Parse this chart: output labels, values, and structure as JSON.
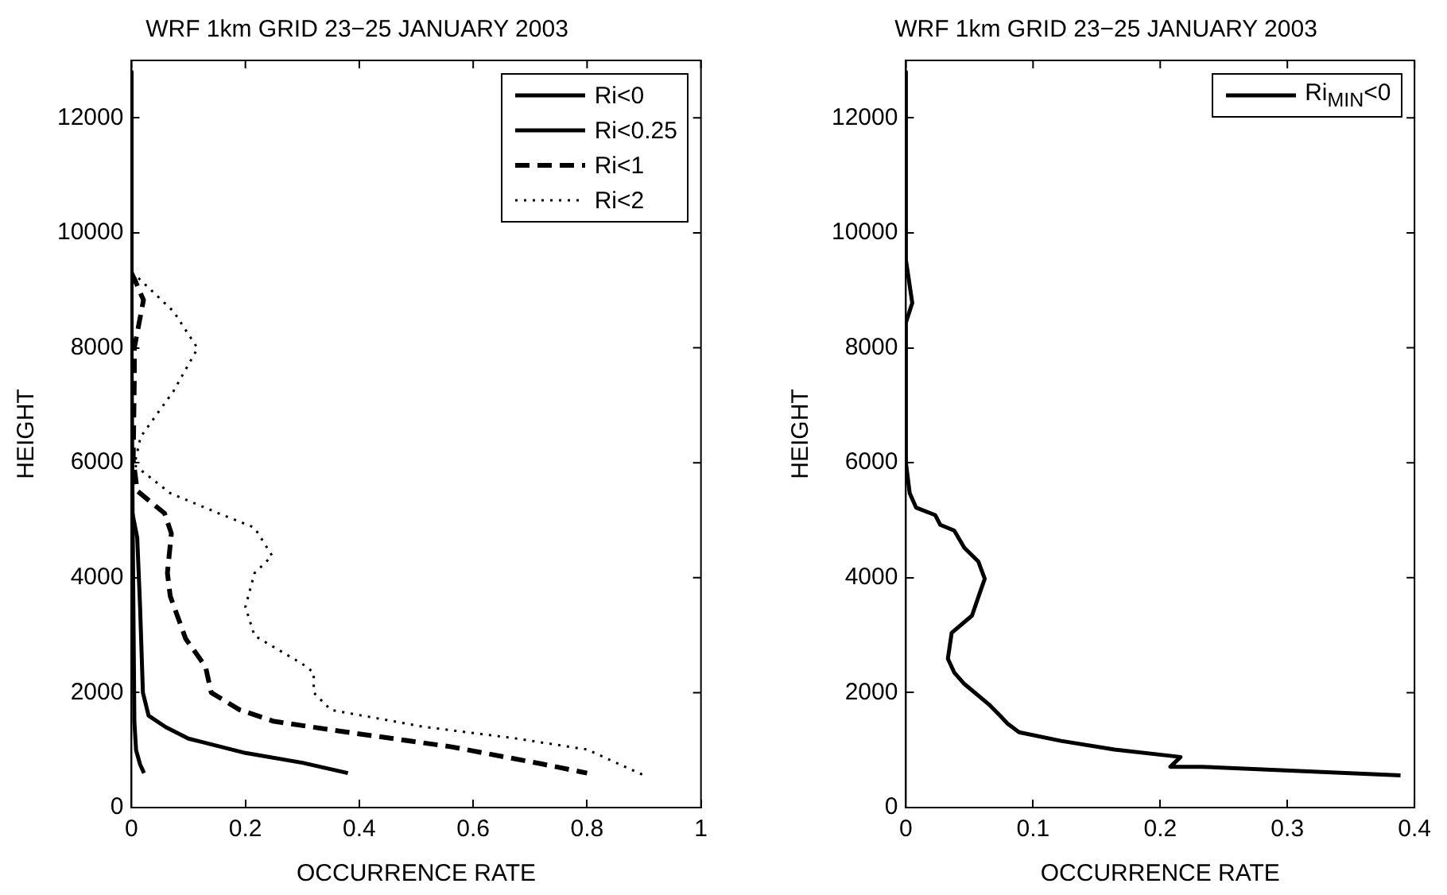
{
  "chart_data": [
    {
      "type": "line",
      "title": "WRF 1km GRID 23−25 JANUARY 2003",
      "xlabel": "OCCURRENCE RATE",
      "ylabel": "HEIGHT",
      "xlim": [
        0,
        1
      ],
      "xticks": [
        0,
        0.2,
        0.4,
        0.6,
        0.8,
        1
      ],
      "ylim": [
        0,
        13000
      ],
      "yticks": [
        0,
        2000,
        4000,
        6000,
        8000,
        10000,
        12000
      ],
      "grid": false,
      "legend": "top right",
      "series": [
        {
          "name": "Ri<0",
          "color": "#000000",
          "line_style": "solid",
          "x": [
            0,
            0,
            0.002,
            0.005,
            0.008,
            0.015,
            0.022
          ],
          "values": [
            12800,
            8000,
            5000,
            1500,
            1000,
            750,
            600
          ]
        },
        {
          "name": "Ri<0.25",
          "color": "#000000",
          "line_style": "solid",
          "x": [
            0,
            0,
            0.01,
            0.015,
            0.02,
            0.03,
            0.06,
            0.1,
            0.2,
            0.3,
            0.38
          ],
          "values": [
            12800,
            5200,
            4700,
            3500,
            2000,
            1600,
            1400,
            1200,
            950,
            780,
            600
          ]
        },
        {
          "name": "Ri<1",
          "color": "#000000",
          "line_style": "dashed",
          "x": [
            0,
            0.005,
            0.021,
            0.005,
            0.005,
            0.003,
            0.01,
            0.058,
            0.07,
            0.063,
            0.068,
            0.095,
            0.13,
            0.14,
            0.19,
            0.25,
            0.38,
            0.56,
            0.72,
            0.8
          ],
          "values": [
            9300,
            9200,
            8830,
            8000,
            7500,
            6060,
            5510,
            5120,
            4770,
            4080,
            3680,
            2940,
            2450,
            2000,
            1700,
            1500,
            1310,
            1060,
            760,
            600
          ]
        },
        {
          "name": "Ri<2",
          "color": "#000000",
          "line_style": "dotted",
          "x": [
            0,
            0.005,
            0.074,
            0.116,
            0.074,
            0.016,
            0.005,
            0.068,
            0.153,
            0.216,
            0.247,
            0.216,
            0.2,
            0.216,
            0.3,
            0.32,
            0.32,
            0.35,
            0.51,
            0.67,
            0.8,
            0.9
          ],
          "values": [
            9300,
            9280,
            8630,
            7990,
            7250,
            6450,
            5960,
            5470,
            5120,
            4870,
            4380,
            4080,
            3490,
            2990,
            2500,
            2350,
            2000,
            1700,
            1410,
            1210,
            1010,
            560
          ]
        }
      ]
    },
    {
      "type": "line",
      "title": "WRF 1km GRID 23−25 JANUARY 2003",
      "xlabel": "OCCURRENCE RATE",
      "ylabel": "HEIGHT",
      "xlim": [
        0,
        0.4
      ],
      "xticks": [
        0,
        0.1,
        0.2,
        0.3,
        0.4
      ],
      "ylim": [
        0,
        13000
      ],
      "yticks": [
        0,
        2000,
        4000,
        6000,
        8000,
        10000,
        12000
      ],
      "grid": false,
      "legend": "top right",
      "series": [
        {
          "name": "Ri$_{MIN}$<0",
          "color": "#000000",
          "line_style": "solid",
          "x": [
            0,
            0,
            0.005,
            0,
            0,
            0.003,
            0.008,
            0.023,
            0.027,
            0.038,
            0.046,
            0.057,
            0.062,
            0.058,
            0.052,
            0.036,
            0.033,
            0.038,
            0.046,
            0.065,
            0.074,
            0.08,
            0.089,
            0.122,
            0.164,
            0.216,
            0.208,
            0.232,
            0.389
          ],
          "values": [
            12800,
            9530,
            8780,
            8440,
            6000,
            5470,
            5220,
            5090,
            4920,
            4820,
            4520,
            4280,
            3980,
            3730,
            3340,
            3040,
            2590,
            2350,
            2150,
            1800,
            1600,
            1460,
            1310,
            1160,
            1010,
            880,
            710,
            710,
            560
          ]
        }
      ]
    }
  ]
}
